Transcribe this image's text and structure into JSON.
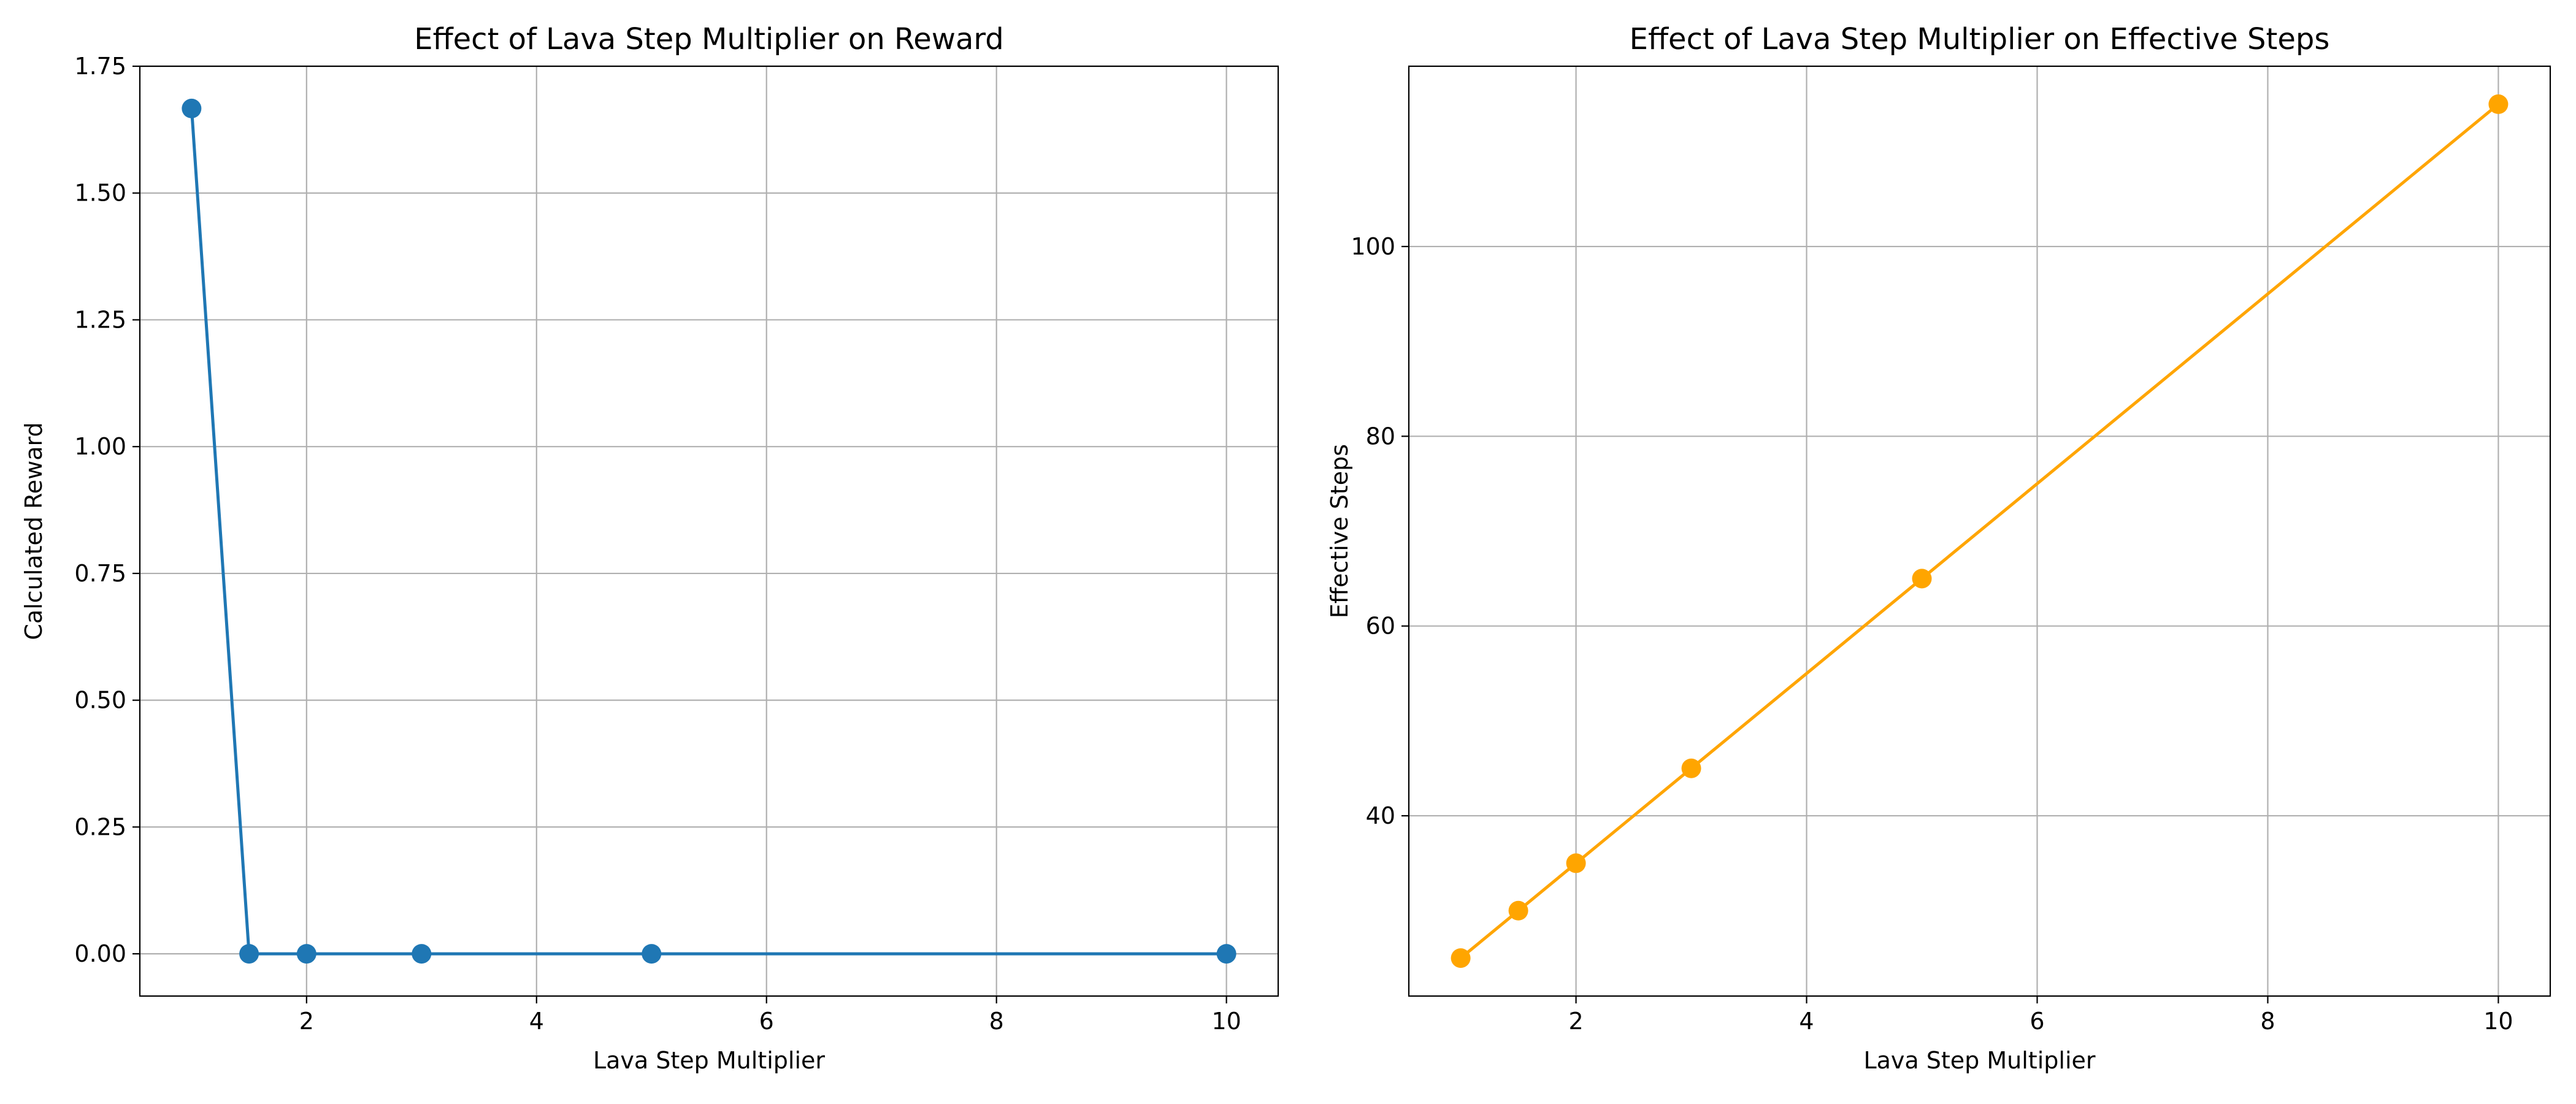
{
  "chart_data": [
    {
      "type": "line",
      "title": "Effect of Lava Step Multiplier on Reward",
      "xlabel": "Lava Step Multiplier",
      "ylabel": "Calculated Reward",
      "xlim": [
        0.55,
        10.45
      ],
      "ylim": [
        -0.0833,
        1.75
      ],
      "xticks": [
        2,
        4,
        6,
        8,
        10
      ],
      "xtick_labels": [
        "2",
        "4",
        "6",
        "8",
        "10"
      ],
      "yticks": [
        0.0,
        0.25,
        0.5,
        0.75,
        1.0,
        1.25,
        1.5,
        1.75
      ],
      "ytick_labels": [
        "0.00",
        "0.25",
        "0.50",
        "0.75",
        "1.00",
        "1.25",
        "1.50",
        "1.75"
      ],
      "grid": true,
      "color": "#1f77b4",
      "marker": "circle",
      "x": [
        1,
        1.5,
        2,
        3,
        5,
        10
      ],
      "y": [
        1.6667,
        0.0,
        0.0,
        0.0,
        0.0,
        0.0
      ]
    },
    {
      "type": "line",
      "title": "Effect of Lava Step Multiplier on Effective Steps",
      "xlabel": "Lava Step Multiplier",
      "ylabel": "Effective Steps",
      "xlim": [
        0.55,
        10.45
      ],
      "ylim": [
        21.0,
        119.0
      ],
      "xticks": [
        2,
        4,
        6,
        8,
        10
      ],
      "xtick_labels": [
        "2",
        "4",
        "6",
        "8",
        "10"
      ],
      "yticks": [
        40,
        60,
        80,
        100
      ],
      "ytick_labels": [
        "40",
        "60",
        "80",
        "100"
      ],
      "grid": true,
      "color": "#ffa500",
      "marker": "circle",
      "x": [
        1,
        1.5,
        2,
        3,
        5,
        10
      ],
      "y": [
        25,
        30,
        35,
        45,
        65,
        115
      ]
    }
  ]
}
